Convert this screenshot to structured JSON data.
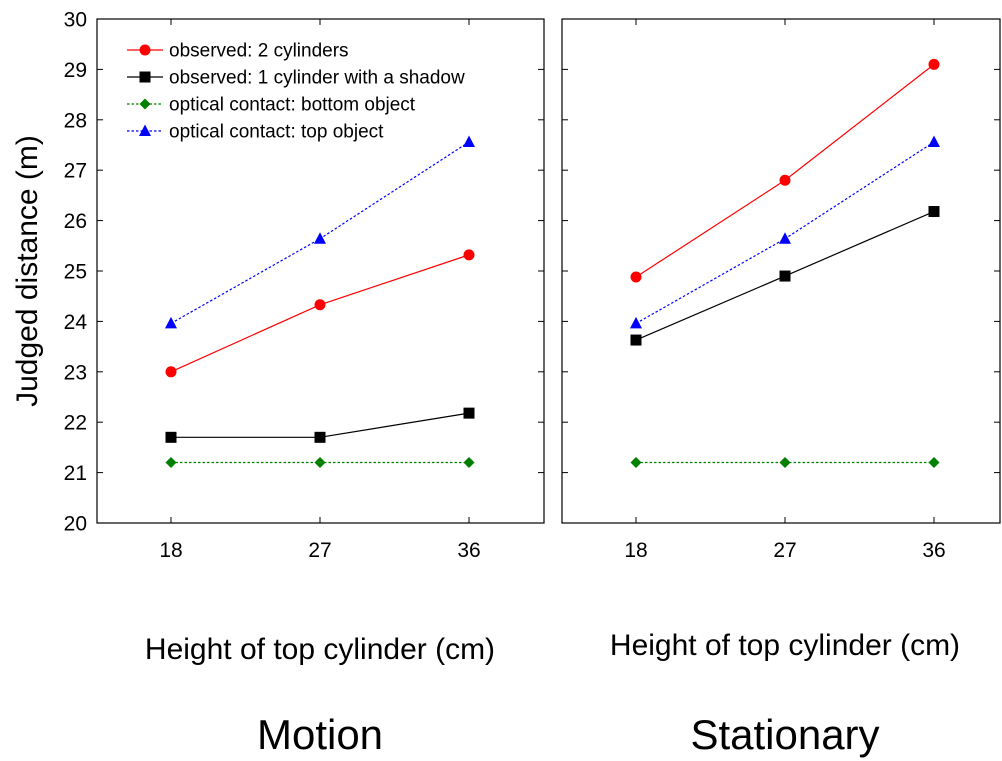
{
  "chart_data": [
    {
      "type": "line",
      "title": "Motion",
      "xlabel": "Height of top cylinder (cm)",
      "ylabel": "Judged distance (m)",
      "categories": [
        "18",
        "27",
        "36"
      ],
      "ylim": [
        20,
        30
      ],
      "yticks": [
        "20",
        "21",
        "22",
        "23",
        "24",
        "25",
        "26",
        "27",
        "28",
        "29",
        "30"
      ],
      "grid": false,
      "legend": "top-left",
      "series": [
        {
          "name": "observed: 2 cylinders",
          "values": [
            23.0,
            24.33,
            25.32
          ],
          "color": "#ff0000",
          "marker": "circle",
          "line": "solid"
        },
        {
          "name": "observed: 1 cylinder with a shadow",
          "values": [
            21.7,
            21.7,
            22.18
          ],
          "color": "#000000",
          "marker": "square",
          "line": "solid"
        },
        {
          "name": "optical contact: bottom object",
          "values": [
            21.2,
            21.2,
            21.2
          ],
          "color": "#008000",
          "marker": "diamond",
          "line": "dotted"
        },
        {
          "name": "optical contact: top object",
          "values": [
            23.96,
            25.64,
            27.56
          ],
          "color": "#0000ff",
          "marker": "triangle",
          "line": "dotted"
        }
      ]
    },
    {
      "type": "line",
      "title": "Stationary",
      "xlabel": "Height of top cylinder (cm)",
      "ylabel": "",
      "categories": [
        "18",
        "27",
        "36"
      ],
      "ylim": [
        20,
        30
      ],
      "grid": false,
      "series": [
        {
          "name": "observed: 2 cylinders",
          "values": [
            24.88,
            26.8,
            29.1
          ],
          "color": "#ff0000",
          "marker": "circle",
          "line": "solid"
        },
        {
          "name": "observed: 1 cylinder with a shadow",
          "values": [
            23.63,
            24.9,
            26.18
          ],
          "color": "#000000",
          "marker": "square",
          "line": "solid"
        },
        {
          "name": "optical contact: bottom object",
          "values": [
            21.2,
            21.2,
            21.2
          ],
          "color": "#008000",
          "marker": "diamond",
          "line": "dotted"
        },
        {
          "name": "optical contact: top object",
          "values": [
            23.96,
            25.64,
            27.56
          ],
          "color": "#0000ff",
          "marker": "triangle",
          "line": "dotted"
        }
      ]
    }
  ]
}
